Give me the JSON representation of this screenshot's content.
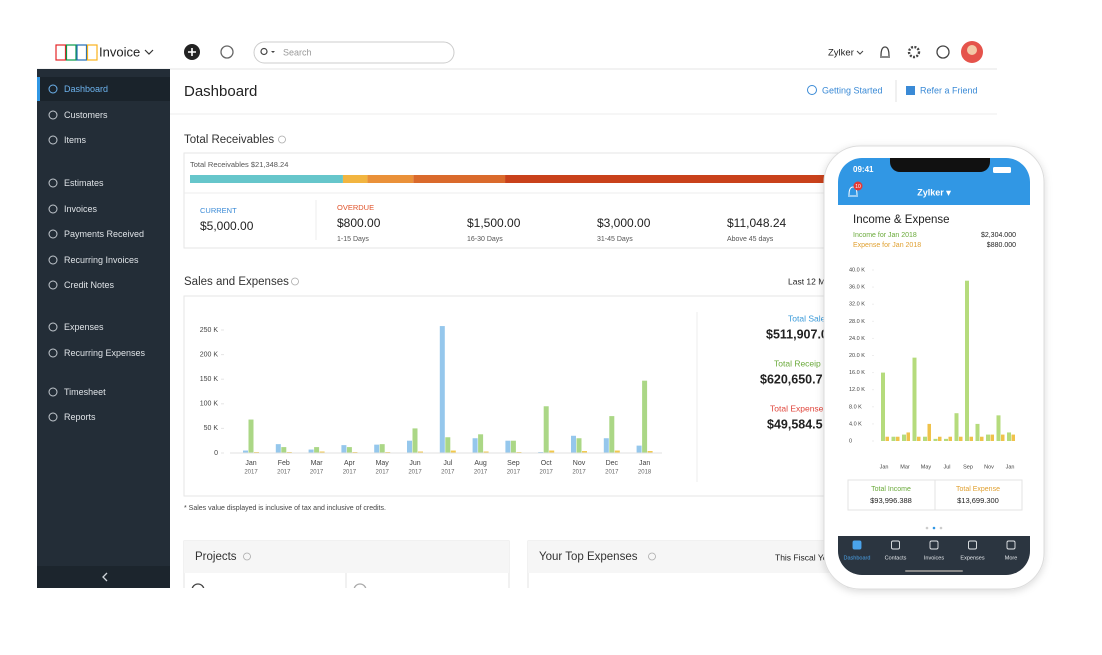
{
  "app": {
    "logo": "ZOHO",
    "product": "Invoice",
    "search_placeholder": "Search",
    "org": "Zylker"
  },
  "sidebar": {
    "items": [
      "Dashboard",
      "Customers",
      "Items",
      "Estimates",
      "Invoices",
      "Payments Received",
      "Recurring Invoices",
      "Credit Notes",
      "Expenses",
      "Recurring Expenses",
      "Timesheet",
      "Reports"
    ],
    "active": 0
  },
  "header": {
    "title": "Dashboard",
    "links": [
      "Getting Started",
      "Refer a Friend"
    ]
  },
  "receivables": {
    "title": "Total Receivables",
    "total_label": "Total Receivables $21,348.24",
    "current": {
      "label": "CURRENT",
      "value": 5000,
      "value_label": "$5,000.00",
      "color": "#66c6cb"
    },
    "overdue_label": "OVERDUE",
    "buckets": [
      {
        "value": 800,
        "value_label": "$800.00",
        "range": "1-15 Days",
        "color": "#f2b540"
      },
      {
        "value": 1500,
        "value_label": "$1,500.00",
        "range": "16-30 Days",
        "color": "#ea9139"
      },
      {
        "value": 3000,
        "value_label": "$3,000.00",
        "range": "31-45 Days",
        "color": "#da6a2c"
      },
      {
        "value": 11048.24,
        "value_label": "$11,048.24",
        "range": "Above 45 days",
        "color": "#c9411b"
      }
    ]
  },
  "sales": {
    "type": "bar",
    "title": "Sales and Expenses",
    "period": "Last 12 M",
    "categories": [
      {
        "month": "Jan",
        "year": "2017"
      },
      {
        "month": "Feb",
        "year": "2017"
      },
      {
        "month": "Mar",
        "year": "2017"
      },
      {
        "month": "Apr",
        "year": "2017"
      },
      {
        "month": "May",
        "year": "2017"
      },
      {
        "month": "Jun",
        "year": "2017"
      },
      {
        "month": "Jul",
        "year": "2017"
      },
      {
        "month": "Aug",
        "year": "2017"
      },
      {
        "month": "Sep",
        "year": "2017"
      },
      {
        "month": "Oct",
        "year": "2017"
      },
      {
        "month": "Nov",
        "year": "2017"
      },
      {
        "month": "Dec",
        "year": "2017"
      },
      {
        "month": "Jan",
        "year": "2018"
      }
    ],
    "series": [
      {
        "color": "#95c7ec",
        "values": [
          5,
          18,
          7,
          16,
          17,
          25,
          258,
          30,
          25,
          2,
          35,
          30,
          15
        ]
      },
      {
        "color": "#abd786",
        "values": [
          68,
          12,
          12,
          12,
          18,
          50,
          32,
          38,
          25,
          95,
          30,
          75,
          147
        ]
      },
      {
        "color": "#f1c84c",
        "values": [
          2,
          2,
          3,
          2,
          2,
          3,
          5,
          3,
          2,
          5,
          4,
          5,
          4
        ]
      }
    ],
    "ylim": [
      0,
      260
    ],
    "yticks": [
      0,
      {
        "value": 50,
        "label": "50 K"
      },
      {
        "value": 100,
        "label": "100 K"
      },
      {
        "value": 150,
        "label": "150 K"
      },
      {
        "value": 200,
        "label": "200 K"
      },
      {
        "value": 250,
        "label": "250 K"
      }
    ],
    "totals": [
      {
        "label": "Total Sale",
        "value_label": "$511,907.0",
        "color": "#3a9ad9"
      },
      {
        "label": "Total Receip",
        "value_label": "$620,650.7",
        "color": "#6aaa3a"
      },
      {
        "label": "Total Expense",
        "value_label": "$49,584.5",
        "color": "#e0463c"
      }
    ],
    "note": "* Sales value displayed is inclusive of tax and inclusive of credits."
  },
  "projects": {
    "title": "Projects"
  },
  "top_expenses": {
    "title": "Your Top Expenses",
    "period": "This Fiscal Ye"
  },
  "phone": {
    "time": "09:41",
    "badge": "10",
    "org": "Zylker ▾",
    "title": "Income & Expense",
    "income_label": "Income for Jan 2018",
    "income_value": "$2,304.000",
    "expense_label": "Expense for Jan 2018",
    "expense_value": "$880.000",
    "chart": {
      "type": "bar",
      "categories": [
        "Jan",
        null,
        "Mar",
        null,
        "May",
        null,
        "Jul",
        null,
        "Sep",
        null,
        "Nov",
        null,
        "Jan"
      ],
      "series": [
        {
          "color": "#b5db7c",
          "values": [
            16,
            1,
            1.5,
            19.5,
            1,
            0.5,
            0.5,
            6.5,
            37.5,
            4,
            1.5,
            6,
            2
          ]
        },
        {
          "color": "#efc24a",
          "values": [
            1,
            1,
            2,
            1,
            4,
            1,
            1,
            1,
            1,
            1,
            1.5,
            1.5,
            1.5
          ]
        }
      ],
      "ylim": [
        0,
        40
      ],
      "yticks": [
        0,
        {
          "value": 4,
          "label": "4.0 K"
        },
        {
          "value": 8,
          "label": "8.0 K"
        },
        {
          "value": 12,
          "label": "12.0 K"
        },
        {
          "value": 16,
          "label": "16.0 K"
        },
        {
          "value": 20,
          "label": "20.0 K"
        },
        {
          "value": 24,
          "label": "24.0 K"
        },
        {
          "value": 28,
          "label": "28.0 K"
        },
        {
          "value": 32,
          "label": "32.0 K"
        },
        {
          "value": 36,
          "label": "36.0 K"
        },
        {
          "value": 40,
          "label": "40.0 K"
        }
      ]
    },
    "total_income_label": "Total Income",
    "total_income": "$93,996.388",
    "total_expense_label": "Total Expense",
    "total_expense": "$13,699.300",
    "tabs": [
      "Dashboard",
      "Contacts",
      "Invoices",
      "Expenses",
      "More"
    ]
  }
}
